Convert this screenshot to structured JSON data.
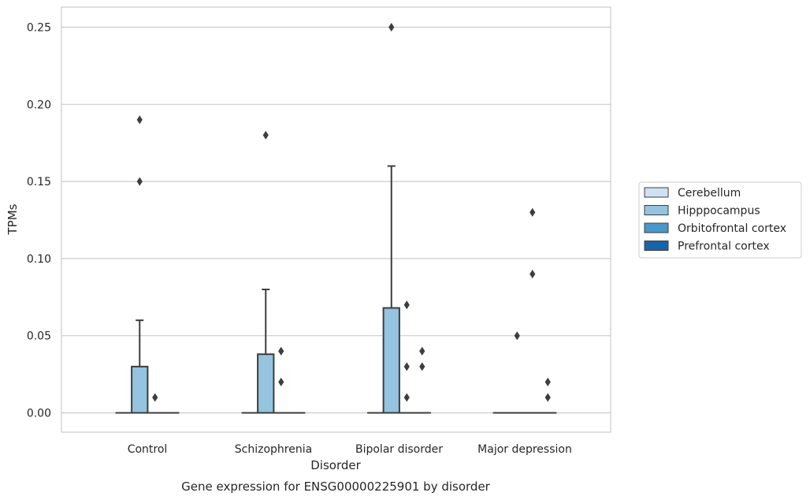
{
  "chart_data": {
    "type": "box",
    "title": "Gene expression for ENSG00000225901 by disorder",
    "xlabel": "Disorder",
    "ylabel": "TPMs",
    "ylim": [
      -0.012,
      0.263
    ],
    "yticks": [
      0.0,
      0.05,
      0.1,
      0.15,
      0.2,
      0.25
    ],
    "ytick_labels": [
      "0.00",
      "0.05",
      "0.10",
      "0.15",
      "0.20",
      "0.25"
    ],
    "grid": "horizontal",
    "legend_position": "right",
    "categories": [
      "Control",
      "Schizophrenia",
      "Bipolar disorder",
      "Major depression"
    ],
    "series": [
      {
        "name": "Cerebellum",
        "color": "#d0e1f2",
        "boxes": [
          {
            "q1": 0,
            "median": 0,
            "q3": 0,
            "whisker_low": 0,
            "whisker_high": 0,
            "outliers": []
          },
          {
            "q1": 0,
            "median": 0,
            "q3": 0,
            "whisker_low": 0,
            "whisker_high": 0,
            "outliers": []
          },
          {
            "q1": 0,
            "median": 0,
            "q3": 0,
            "whisker_low": 0,
            "whisker_high": 0,
            "outliers": []
          },
          {
            "q1": 0,
            "median": 0,
            "q3": 0,
            "whisker_low": 0,
            "whisker_high": 0,
            "outliers": []
          }
        ]
      },
      {
        "name": "Hipppocampus",
        "color": "#94c4df",
        "boxes": [
          {
            "q1": 0,
            "median": 0,
            "q3": 0.03,
            "whisker_low": 0,
            "whisker_high": 0.06,
            "outliers": [
              0.15,
              0.19
            ]
          },
          {
            "q1": 0,
            "median": 0,
            "q3": 0.038,
            "whisker_low": 0,
            "whisker_high": 0.08,
            "outliers": [
              0.18
            ]
          },
          {
            "q1": 0,
            "median": 0,
            "q3": 0.068,
            "whisker_low": 0,
            "whisker_high": 0.16,
            "outliers": [
              0.25
            ]
          },
          {
            "q1": 0,
            "median": 0,
            "q3": 0,
            "whisker_low": 0,
            "whisker_high": 0,
            "outliers": [
              0.05
            ]
          }
        ]
      },
      {
        "name": "Orbitofrontal cortex",
        "color": "#4a98c9",
        "boxes": [
          {
            "q1": 0,
            "median": 0,
            "q3": 0,
            "whisker_low": 0,
            "whisker_high": 0,
            "outliers": [
              0.01
            ]
          },
          {
            "q1": 0,
            "median": 0,
            "q3": 0,
            "whisker_low": 0,
            "whisker_high": 0,
            "outliers": [
              0.02,
              0.04
            ]
          },
          {
            "q1": 0,
            "median": 0,
            "q3": 0,
            "whisker_low": 0,
            "whisker_high": 0,
            "outliers": [
              0.01,
              0.03,
              0.07
            ]
          },
          {
            "q1": 0,
            "median": 0,
            "q3": 0,
            "whisker_low": 0,
            "whisker_high": 0,
            "outliers": [
              0.09,
              0.13
            ]
          }
        ]
      },
      {
        "name": "Prefrontal cortex",
        "color": "#1764ab",
        "boxes": [
          {
            "q1": 0,
            "median": 0,
            "q3": 0,
            "whisker_low": 0,
            "whisker_high": 0,
            "outliers": []
          },
          {
            "q1": 0,
            "median": 0,
            "q3": 0,
            "whisker_low": 0,
            "whisker_high": 0,
            "outliers": []
          },
          {
            "q1": 0,
            "median": 0,
            "q3": 0,
            "whisker_low": 0,
            "whisker_high": 0,
            "outliers": [
              0.03,
              0.04
            ]
          },
          {
            "q1": 0,
            "median": 0,
            "q3": 0,
            "whisker_low": 0,
            "whisker_high": 0,
            "outliers": [
              0.01,
              0.02
            ]
          }
        ]
      }
    ]
  },
  "colors": {
    "grid": "#cccccc",
    "frame": "#cccccc",
    "box_edge": "#3d3d3d",
    "text": "#262626"
  }
}
